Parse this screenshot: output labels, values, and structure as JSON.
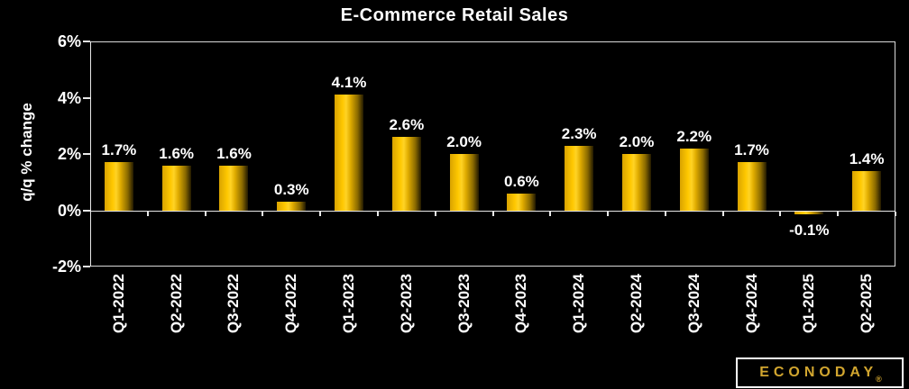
{
  "title": "E-Commerce Retail Sales",
  "chart_data": {
    "type": "bar",
    "title": "E-Commerce Retail Sales",
    "ylabel": "q/q % change",
    "xlabel": "",
    "categories": [
      "Q1-2022",
      "Q2-2022",
      "Q3-2022",
      "Q4-2022",
      "Q1-2023",
      "Q2-2023",
      "Q3-2023",
      "Q4-2023",
      "Q1-2024",
      "Q2-2024",
      "Q3-2024",
      "Q4-2024",
      "Q1-2025",
      "Q2-2025"
    ],
    "values": [
      1.7,
      1.6,
      1.6,
      0.3,
      4.1,
      2.6,
      2.0,
      0.6,
      2.3,
      2.0,
      2.2,
      1.7,
      -0.1,
      1.4
    ],
    "data_labels": [
      "1.7%",
      "1.6%",
      "1.6%",
      "0.3%",
      "4.1%",
      "2.6%",
      "2.0%",
      "0.6%",
      "2.3%",
      "2.0%",
      "2.2%",
      "1.7%",
      "-0.1%",
      "1.4%"
    ],
    "ylim": [
      -2,
      6
    ],
    "ytick_values": [
      6,
      4,
      2,
      0,
      -2
    ],
    "ytick_labels": [
      "6%",
      "4%",
      "2%",
      "0%",
      "-2%"
    ],
    "grid": false,
    "legend": false
  },
  "colors": {
    "background": "#000000",
    "text": "#ffffff",
    "axis": "#e8e8e8",
    "plot_border": "#d9d9d9",
    "bar_gradient_start": "#d9a300",
    "bar_gradient_bright": "#ffd325",
    "bar_gradient_end": "#221900",
    "logo_gold": "#d2a62f"
  },
  "branding": {
    "logo_text": "ECONODAY",
    "registered_mark": "®"
  }
}
